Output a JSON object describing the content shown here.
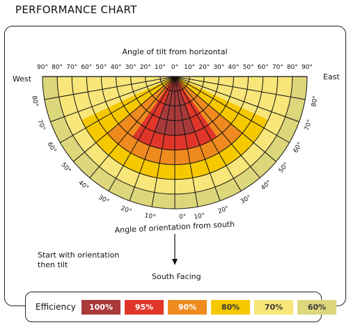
{
  "title": "PERFORMANCE CHART",
  "chart_data": {
    "type": "heatmap",
    "subtype": "polar-semicircle",
    "title": "PERFORMANCE CHART",
    "tilt_axis_label": "Angle of tilt from horizontal",
    "orientation_axis_label": "Angle of orientation from south",
    "west_label": "West",
    "east_label": "East",
    "south_label": "South Facing",
    "instruction": "Start with orientation then tilt",
    "tilt_ticks": [
      "90°",
      "80°",
      "70°",
      "60°",
      "50°",
      "40°",
      "30°",
      "20°",
      "10°",
      "0°",
      "10°",
      "20°",
      "30°",
      "40°",
      "50°",
      "60°",
      "70°",
      "80°",
      "90°"
    ],
    "orientation_ticks": [
      "10°",
      "20°",
      "30°",
      "40°",
      "50°",
      "60°",
      "70°",
      "80°"
    ],
    "orientation_zero": "0°",
    "efficiency_bands": [
      {
        "label": "100%",
        "color": "#a83a3a"
      },
      {
        "label": "95%",
        "color": "#e0362a"
      },
      {
        "label": "90%",
        "color": "#ef8a1e"
      },
      {
        "label": "80%",
        "color": "#f6c800"
      },
      {
        "label": "70%",
        "color": "#f8e67a"
      },
      {
        "label": "60%",
        "color": "#ddd77c"
      }
    ],
    "band_regions": [
      {
        "band": 5,
        "max_orientation_deg": 90,
        "max_tilt_deg": 90
      },
      {
        "band": 4,
        "max_orientation_deg": 90,
        "max_tilt_deg": 80
      },
      {
        "band": 3,
        "max_orientation_deg": 65,
        "max_tilt_deg": 70
      },
      {
        "band": 2,
        "max_orientation_deg": 50,
        "max_tilt_deg": 60
      },
      {
        "band": 1,
        "max_orientation_deg": 35,
        "max_tilt_deg": 50
      },
      {
        "band": 0,
        "max_orientation_deg": 20,
        "max_tilt_deg": 40
      }
    ]
  },
  "legend": {
    "label": "Efficiency"
  },
  "colors": {
    "frame": "#222222",
    "grid": "#111111"
  }
}
